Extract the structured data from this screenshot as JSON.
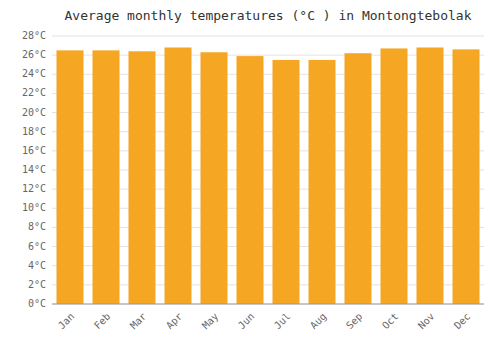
{
  "chart_data": {
    "type": "bar",
    "title": "Average monthly temperatures (°C ) in Montongtebolak",
    "categories": [
      "Jan",
      "Feb",
      "Mar",
      "Apr",
      "May",
      "Jun",
      "Jul",
      "Aug",
      "Sep",
      "Oct",
      "Nov",
      "Dec"
    ],
    "values": [
      26.5,
      26.5,
      26.4,
      26.8,
      26.3,
      25.9,
      25.5,
      25.5,
      26.2,
      26.7,
      26.8,
      26.6
    ],
    "color": "#F5A623",
    "ylim": [
      0,
      28
    ],
    "yticks": [
      {
        "value": 0,
        "label": "0°C"
      },
      {
        "value": 2,
        "label": "2°C"
      },
      {
        "value": 4,
        "label": "4°C"
      },
      {
        "value": 6,
        "label": "6°C"
      },
      {
        "value": 8,
        "label": "8°C"
      },
      {
        "value": 10,
        "label": "10°C"
      },
      {
        "value": 12,
        "label": "12°C"
      },
      {
        "value": 14,
        "label": "14°C"
      },
      {
        "value": 16,
        "label": "16°C"
      },
      {
        "value": 18,
        "label": "18°C"
      },
      {
        "value": 20,
        "label": "20°C"
      },
      {
        "value": 22,
        "label": "22°C"
      },
      {
        "value": 24,
        "label": "24°C"
      },
      {
        "value": 26,
        "label": "26°C"
      },
      {
        "value": 28,
        "label": "28°C"
      }
    ],
    "grid": true
  }
}
